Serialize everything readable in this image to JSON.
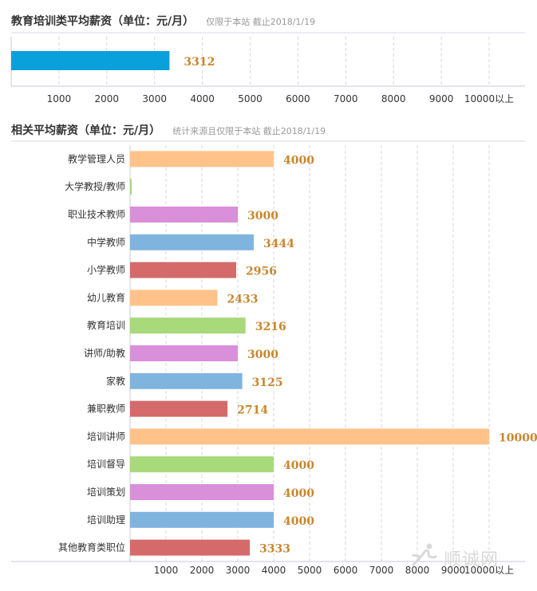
{
  "chart_data": [
    {
      "type": "bar",
      "orientation": "horizontal",
      "title": "教育培训类平均薪资（单位：元/月）",
      "subtitle": "仅限于本站  截止2018/1/19",
      "categories": [
        ""
      ],
      "values": [
        3312
      ],
      "value_labels": [
        "3312"
      ],
      "xlim": [
        0,
        10000
      ],
      "xticks": [
        1000,
        2000,
        3000,
        4000,
        5000,
        6000,
        7000,
        8000,
        9000,
        10000
      ],
      "xtick_labels": [
        "1000",
        "2000",
        "3000",
        "4000",
        "5000",
        "6000",
        "7000",
        "8000",
        "9000",
        "10000以上"
      ],
      "grid": true,
      "colors": [
        "#0aa0dc"
      ]
    },
    {
      "type": "bar",
      "orientation": "horizontal",
      "title": "相关平均薪资（单位：元/月）",
      "subtitle": "统计来源且仅限于本站  截止2018/1/19",
      "categories": [
        "教学管理人员",
        "大学教授/教师",
        "职业技术教师",
        "中学教师",
        "小学教师",
        "幼儿教育",
        "教育培训",
        "讲师/助教",
        "家教",
        "兼职教师",
        "培训讲师",
        "培训督导",
        "培训策划",
        "培训助理",
        "其他教育类职位"
      ],
      "values": [
        4000,
        0,
        3000,
        3444,
        2956,
        2433,
        3216,
        3000,
        3125,
        2714,
        10000,
        4000,
        4000,
        4000,
        3333
      ],
      "value_labels": [
        "4000",
        "",
        "3000",
        "3444",
        "2956",
        "2433",
        "3216",
        "3000",
        "3125",
        "2714",
        "10000",
        "4000",
        "4000",
        "4000",
        "3333"
      ],
      "xlim": [
        0,
        10000
      ],
      "xticks": [
        1000,
        2000,
        3000,
        4000,
        5000,
        6000,
        7000,
        8000,
        9000,
        10000
      ],
      "xtick_labels": [
        "1000",
        "2000",
        "3000",
        "4000",
        "5000",
        "6000",
        "7000",
        "8000",
        "9000",
        "10000以上"
      ],
      "grid": true,
      "colors": [
        "#ffc38a",
        "#a8d97a",
        "#d98fd9",
        "#7fb4df",
        "#d46a6a"
      ]
    }
  ],
  "watermark": {
    "text": "顺诚网",
    "icon": "runner-logo-icon"
  }
}
